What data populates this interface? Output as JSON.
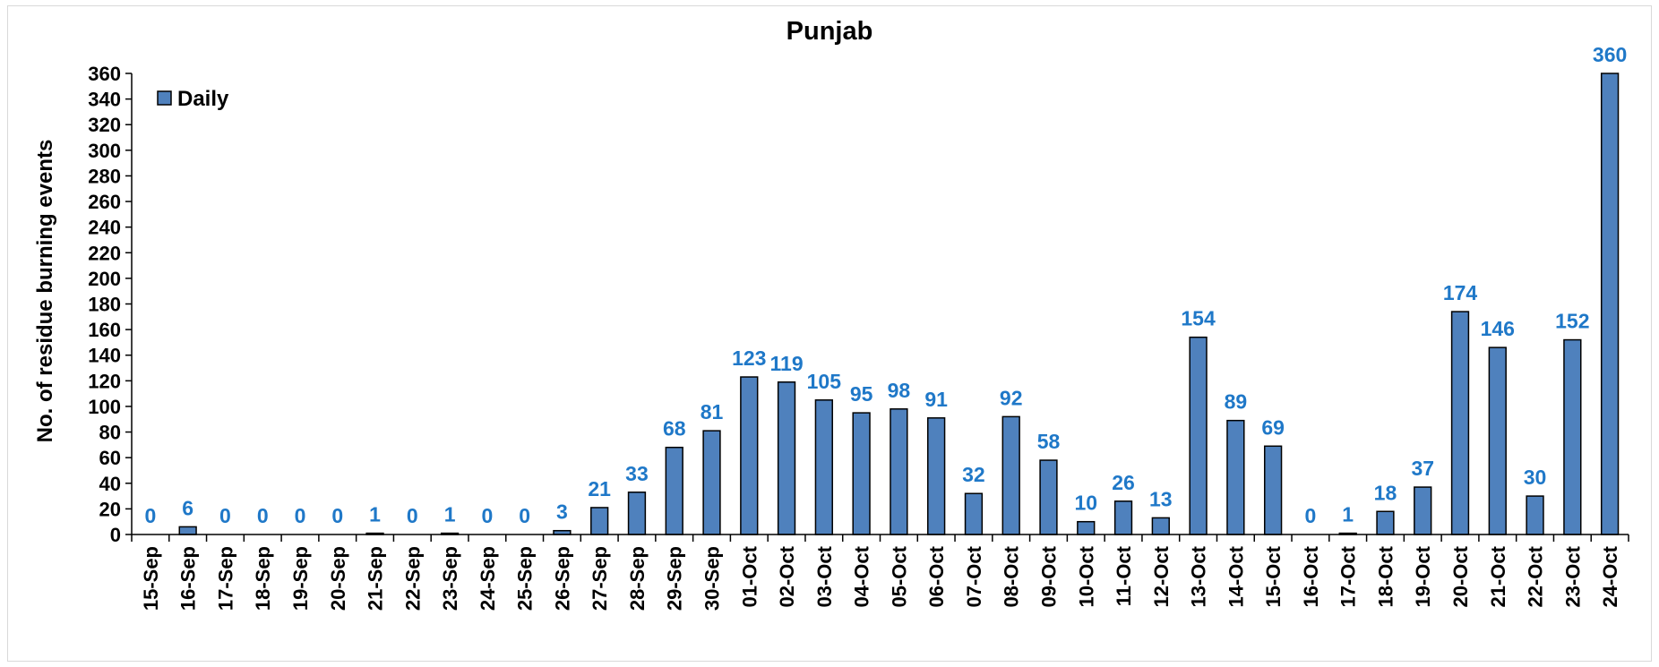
{
  "chart_data": {
    "type": "bar",
    "title": "Punjab",
    "xlabel": "",
    "ylabel": "No. of residue burning events",
    "ylim": [
      0,
      360
    ],
    "ytick_step": 20,
    "legend": "top-left",
    "grid": false,
    "bar_color": "#4F81BD",
    "bar_edge_color": "#000000",
    "label_color": "#1F78C8",
    "categories": [
      "15-Sep",
      "16-Sep",
      "17-Sep",
      "18-Sep",
      "19-Sep",
      "20-Sep",
      "21-Sep",
      "22-Sep",
      "23-Sep",
      "24-Sep",
      "25-Sep",
      "26-Sep",
      "27-Sep",
      "28-Sep",
      "29-Sep",
      "30-Sep",
      "01-Oct",
      "02-Oct",
      "03-Oct",
      "04-Oct",
      "05-Oct",
      "06-Oct",
      "07-Oct",
      "08-Oct",
      "09-Oct",
      "10-Oct",
      "11-Oct",
      "12-Oct",
      "13-Oct",
      "14-Oct",
      "15-Oct",
      "16-Oct",
      "17-Oct",
      "18-Oct",
      "19-Oct",
      "20-Oct",
      "21-Oct",
      "22-Oct",
      "23-Oct",
      "24-Oct"
    ],
    "series": [
      {
        "name": "Daily",
        "values": [
          0,
          6,
          0,
          0,
          0,
          0,
          1,
          0,
          1,
          0,
          0,
          3,
          21,
          33,
          68,
          81,
          123,
          119,
          105,
          95,
          98,
          91,
          32,
          92,
          58,
          10,
          26,
          13,
          154,
          89,
          69,
          0,
          1,
          18,
          37,
          174,
          146,
          30,
          152,
          360
        ]
      }
    ]
  }
}
